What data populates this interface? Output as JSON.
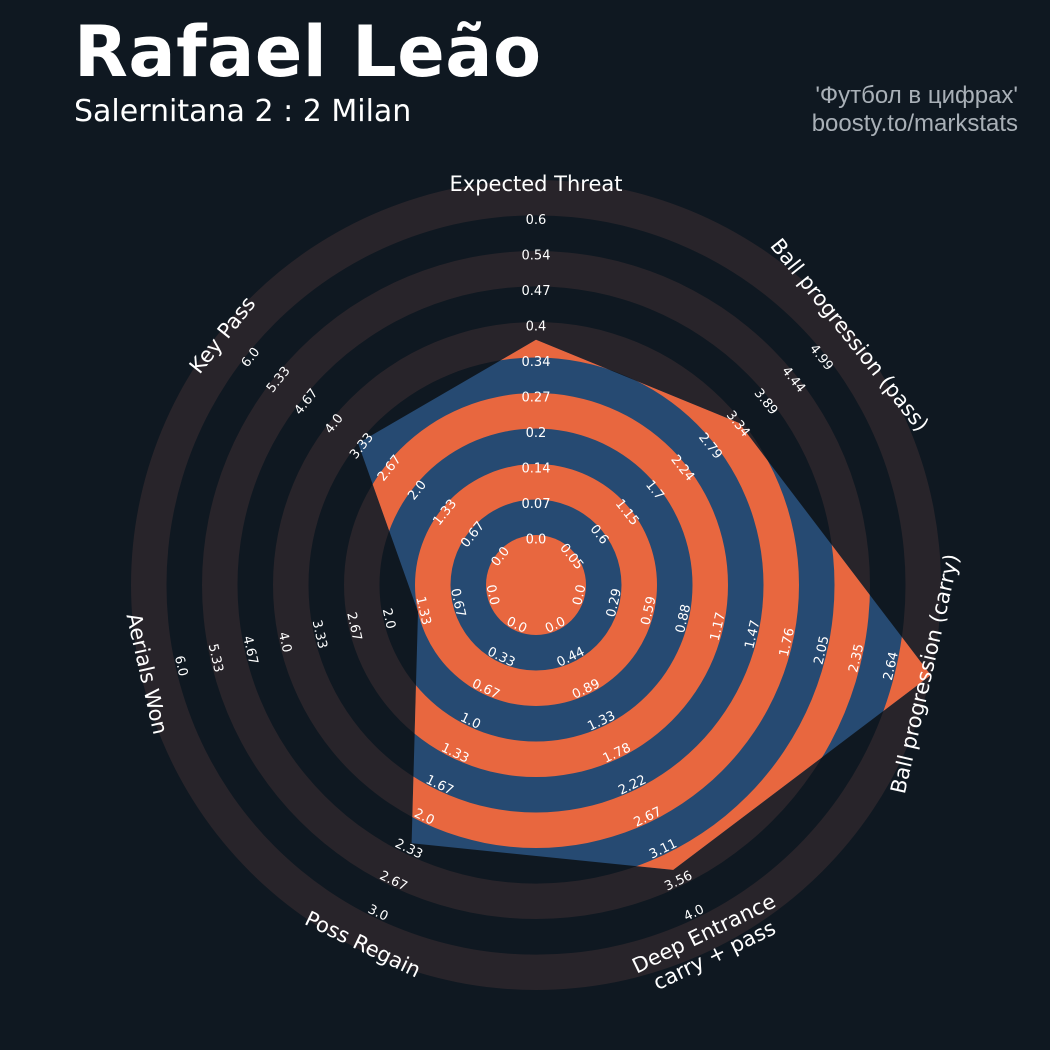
{
  "header": {
    "title": "Rafael Leão",
    "subtitle": "Salernitana 2 : 2 Milan",
    "credit_line1": "'Футбол в цифрах'",
    "credit_line2": "boosty.to/markstats"
  },
  "colors": {
    "background": "#0f1821",
    "ring": "#28242a",
    "player_fill": "#264a72",
    "alt_ring": "#e8673f",
    "text": "#ffffff"
  },
  "chart_data": {
    "type": "radar",
    "axes": [
      {
        "label": [
          "Expected Threat"
        ],
        "ticks": [
          "0.0",
          "0.07",
          "0.14",
          "0.2",
          "0.27",
          "0.34",
          "0.4",
          "0.47",
          "0.54",
          "0.6"
        ],
        "min": 0.0,
        "max": 0.6,
        "value": 0.33
      },
      {
        "label": [
          "Ball progression (pass)"
        ],
        "ticks": [
          "0.05",
          "0.6",
          "1.15",
          "1.7",
          "2.24",
          "2.79",
          "3.34",
          "3.89",
          "4.44",
          "4.99"
        ],
        "min": 0.05,
        "max": 4.99,
        "value": 2.97
      },
      {
        "label": [
          "Ball progression (carry)"
        ],
        "ticks": [
          "0.0",
          "0.29",
          "0.59",
          "0.88",
          "1.17",
          "1.47",
          "1.76",
          "2.05",
          "2.35",
          "2.64"
        ],
        "min": 0.0,
        "max": 2.64,
        "value": 2.64
      },
      {
        "label": [
          "Deep Entrance",
          "carry + pass"
        ],
        "ticks": [
          "0.0",
          "0.44",
          "0.89",
          "1.33",
          "1.78",
          "2.22",
          "2.67",
          "3.11",
          "3.56",
          "4.0"
        ],
        "min": 0.0,
        "max": 4.0,
        "value": 3.0
      },
      {
        "label": [
          "Poss Regain"
        ],
        "ticks": [
          "0.0",
          "0.33",
          "0.67",
          "1.0",
          "1.33",
          "1.67",
          "2.0",
          "2.33",
          "2.67",
          "3.0"
        ],
        "min": 0.0,
        "max": 3.0,
        "value": 2.0
      },
      {
        "label": [
          "Aerials Won"
        ],
        "ticks": [
          "0.0",
          "0.67",
          "1.33",
          "2.0",
          "2.67",
          "3.33",
          "4.0",
          "4.67",
          "5.33",
          "6.0"
        ],
        "min": 0.0,
        "max": 6.0,
        "value": 1.2
      },
      {
        "label": [
          "Key Pass"
        ],
        "ticks": [
          "0.0",
          "0.67",
          "1.33",
          "2.0",
          "2.67",
          "3.33",
          "4.0",
          "4.67",
          "5.33",
          "6.0"
        ],
        "min": 0.0,
        "max": 6.0,
        "value": 3.0
      }
    ]
  }
}
